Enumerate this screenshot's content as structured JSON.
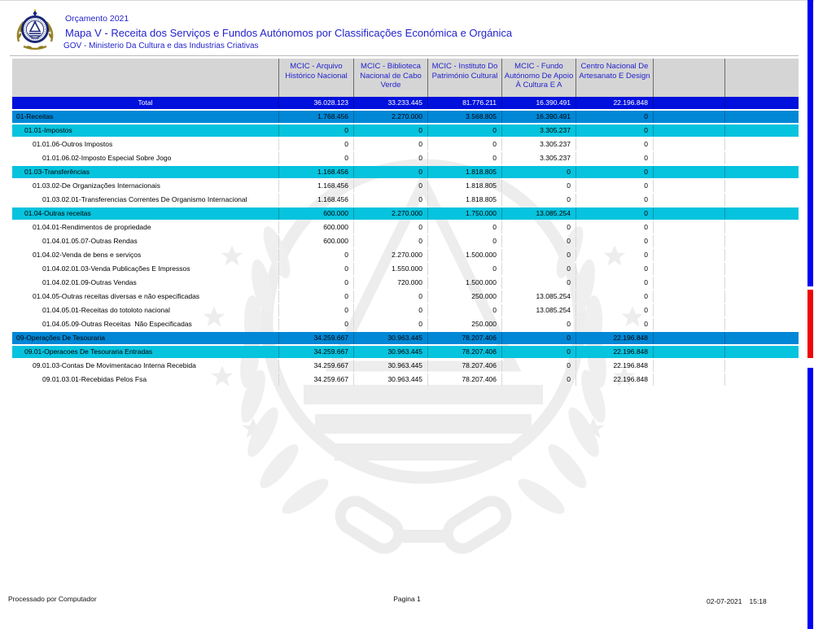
{
  "header": {
    "orcamento": "Orçamento 2021",
    "title": "Mapa V - Receita dos Serviços e Fundos Autónomos por Classificações Económica e Orgánica",
    "org": "GOV - Ministerio Da Cultura e das Industrias Criativas"
  },
  "table": {
    "columns": [
      "MCIC - Arquivo Histórico Nacional",
      "MCIC - Biblioteca Nacional de Cabo Verde",
      "MCIC - Instituto Do Património Cultural",
      "MCIC - Fundo Autónomo De Apoio À Cultura E A",
      "Centro Nacional De Artesanato E Design"
    ],
    "rows": [
      {
        "label": "Total",
        "style": "total",
        "indent": 0,
        "values": [
          "36.028.123",
          "33.233.445",
          "81.776.211",
          "16.390.491",
          "22.196.848"
        ]
      },
      {
        "label": "01-Receitas",
        "style": "level1",
        "indent": 1,
        "values": [
          "1.768.456",
          "2.270.000",
          "3.568.805",
          "16.390.491",
          "0"
        ]
      },
      {
        "label": "01.01-Impostos",
        "style": "level2",
        "indent": 2,
        "values": [
          "0",
          "0",
          "0",
          "3.305.237",
          "0"
        ]
      },
      {
        "label": "01.01.06-Outros Impostos",
        "style": "plain",
        "indent": 3,
        "values": [
          "0",
          "0",
          "0",
          "3.305.237",
          "0"
        ]
      },
      {
        "label": "01.01.06.02-Imposto Especial Sobre Jogo",
        "style": "plain",
        "indent": 4,
        "values": [
          "0",
          "0",
          "0",
          "3.305.237",
          "0"
        ]
      },
      {
        "label": "01.03-Transferências",
        "style": "level2",
        "indent": 2,
        "values": [
          "1.168.456",
          "0",
          "1.818.805",
          "0",
          "0"
        ]
      },
      {
        "label": "01.03.02-De Organizações Internacionais",
        "style": "plain",
        "indent": 3,
        "values": [
          "1.168.456",
          "0",
          "1.818.805",
          "0",
          "0"
        ]
      },
      {
        "label": "01.03.02.01-Transferencias Correntes De Organismo Internacional",
        "style": "plain",
        "indent": 4,
        "values": [
          "1.168.456",
          "0",
          "1.818.805",
          "0",
          "0"
        ]
      },
      {
        "label": "01.04-Outras receitas",
        "style": "level2",
        "indent": 2,
        "values": [
          "600.000",
          "2.270.000",
          "1.750.000",
          "13.085.254",
          "0"
        ]
      },
      {
        "label": "01.04.01-Rendimentos de propriedade",
        "style": "plain",
        "indent": 3,
        "values": [
          "600.000",
          "0",
          "0",
          "0",
          "0"
        ]
      },
      {
        "label": "01.04.01.05.07-Outras Rendas",
        "style": "plain",
        "indent": 4,
        "values": [
          "600.000",
          "0",
          "0",
          "0",
          "0"
        ]
      },
      {
        "label": "01.04.02-Venda de bens e serviços",
        "style": "plain",
        "indent": 3,
        "values": [
          "0",
          "2.270.000",
          "1.500.000",
          "0",
          "0"
        ]
      },
      {
        "label": "01.04.02.01.03-Venda Publicações E Impressos",
        "style": "plain",
        "indent": 4,
        "values": [
          "0",
          "1.550.000",
          "0",
          "0",
          "0"
        ]
      },
      {
        "label": "01.04.02.01.09-Outras Vendas",
        "style": "plain",
        "indent": 4,
        "values": [
          "0",
          "720.000",
          "1.500.000",
          "0",
          "0"
        ]
      },
      {
        "label": "01.04.05-Outras receitas diversas e não especificadas",
        "style": "plain",
        "indent": 3,
        "values": [
          "0",
          "0",
          "250.000",
          "13.085.254",
          "0"
        ]
      },
      {
        "label": "01.04.05.01-Receitas do totoloto nacional",
        "style": "plain",
        "indent": 4,
        "values": [
          "0",
          "0",
          "0",
          "13.085.254",
          "0"
        ]
      },
      {
        "label": "01.04.05.09-Outras Receitas  Não Especificadas",
        "style": "plain",
        "indent": 4,
        "values": [
          "0",
          "0",
          "250.000",
          "0",
          "0"
        ]
      },
      {
        "label": "09-Operações De Tesouraria",
        "style": "level1",
        "indent": 1,
        "values": [
          "34.259.667",
          "30.963.445",
          "78.207.406",
          "0",
          "22.196.848"
        ]
      },
      {
        "label": "09.01-Operacoes De Tesouraria Entradas",
        "style": "level2",
        "indent": 2,
        "values": [
          "34.259.667",
          "30.963.445",
          "78.207.406",
          "0",
          "22.196.848"
        ]
      },
      {
        "label": "09.01.03-Contas De Movimentacao Interna Recebida",
        "style": "plain",
        "indent": 3,
        "values": [
          "34.259.667",
          "30.963.445",
          "78.207.406",
          "0",
          "22.196.848"
        ]
      },
      {
        "label": "09.01.03.01-Recebidas Pelos Fsa",
        "style": "plain",
        "indent": 4,
        "values": [
          "34.259.667",
          "30.963.445",
          "78.207.406",
          "0",
          "22.196.848"
        ]
      }
    ]
  },
  "footer": {
    "left": "Processado por Computador",
    "center": "Pagina 1",
    "date": "02-07-2021",
    "time": "15:18"
  },
  "colors": {
    "header_text": "#2323cd",
    "header_band": "#d5d5d5",
    "total_row": "#0010dd",
    "section_row": "#0087d6",
    "subsection_row": "#06c3de",
    "side_bar_blue": "#0202f2",
    "side_bar_red": "#ee0606"
  }
}
